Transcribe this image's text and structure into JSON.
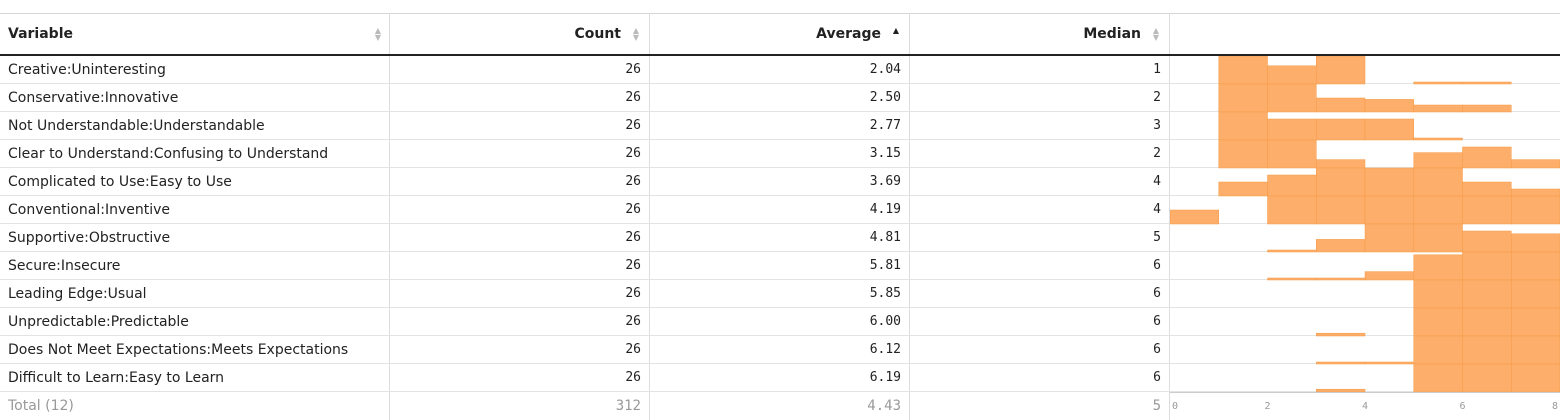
{
  "columns": {
    "variable": "Variable",
    "count": "Count",
    "average": "Average",
    "median": "Median"
  },
  "rows": [
    {
      "variable": "Creative:Uninteresting",
      "count": "26",
      "average": "2.04",
      "median": "1"
    },
    {
      "variable": "Conservative:Innovative",
      "count": "26",
      "average": "2.50",
      "median": "2"
    },
    {
      "variable": "Not Understandable:Understandable",
      "count": "26",
      "average": "2.77",
      "median": "3"
    },
    {
      "variable": "Clear to Understand:Confusing to Understand",
      "count": "26",
      "average": "3.15",
      "median": "2"
    },
    {
      "variable": "Complicated to Use:Easy to Use",
      "count": "26",
      "average": "3.69",
      "median": "4"
    },
    {
      "variable": "Conventional:Inventive",
      "count": "26",
      "average": "4.19",
      "median": "4"
    },
    {
      "variable": "Supportive:Obstructive",
      "count": "26",
      "average": "4.81",
      "median": "5"
    },
    {
      "variable": "Secure:Insecure",
      "count": "26",
      "average": "5.81",
      "median": "6"
    },
    {
      "variable": "Leading Edge:Usual",
      "count": "26",
      "average": "5.85",
      "median": "6"
    },
    {
      "variable": "Unpredictable:Predictable",
      "count": "26",
      "average": "6.00",
      "median": "6"
    },
    {
      "variable": "Does Not Meet Expectations:Meets Expectations",
      "count": "26",
      "average": "6.12",
      "median": "6"
    },
    {
      "variable": "Difficult to Learn:Easy to Learn",
      "count": "26",
      "average": "6.19",
      "median": "6"
    }
  ],
  "total": {
    "label": "Total (12)",
    "count": "312",
    "average": "4.43",
    "median": "5"
  },
  "chart_data": {
    "type": "bar",
    "x_ticks": [
      "0",
      "2",
      "4",
      "6",
      "8"
    ],
    "xlim": [
      0,
      8
    ],
    "bins": [
      0,
      1,
      2,
      3,
      4,
      5,
      6,
      7
    ],
    "bin_width": 1,
    "series_per_row": [
      [
        0,
        1,
        0.65,
        1,
        0,
        0.05,
        0.05,
        0
      ],
      [
        0,
        1,
        1,
        0.5,
        0.45,
        0.25,
        0.25,
        0
      ],
      [
        0,
        1,
        0.75,
        0.75,
        0.75,
        0.05,
        0,
        0
      ],
      [
        0,
        1,
        1,
        0.3,
        0,
        0.55,
        0.75,
        0.3
      ],
      [
        0,
        0.5,
        0.75,
        1,
        1,
        1,
        0.5,
        0.25
      ],
      [
        0.5,
        0,
        1,
        1,
        1,
        1,
        1,
        1
      ],
      [
        0,
        0,
        0.05,
        0.45,
        1,
        1,
        0.75,
        0.65
      ],
      [
        0,
        0,
        0.05,
        0.05,
        0.3,
        0.9,
        1,
        1
      ],
      [
        0,
        0,
        0,
        0,
        0,
        1,
        1,
        1
      ],
      [
        0,
        0,
        0,
        0.1,
        0,
        1,
        1,
        1
      ],
      [
        0,
        0,
        0,
        0.05,
        0.05,
        1,
        1,
        1
      ],
      [
        0,
        0,
        0,
        0.1,
        0,
        1,
        1,
        1
      ]
    ],
    "last_row_overflow": [
      0,
      0,
      0,
      0.3,
      0.55,
      1,
      1,
      1
    ],
    "bar_color": "#fdae6b",
    "bar_edge_color": "#f59a45"
  }
}
